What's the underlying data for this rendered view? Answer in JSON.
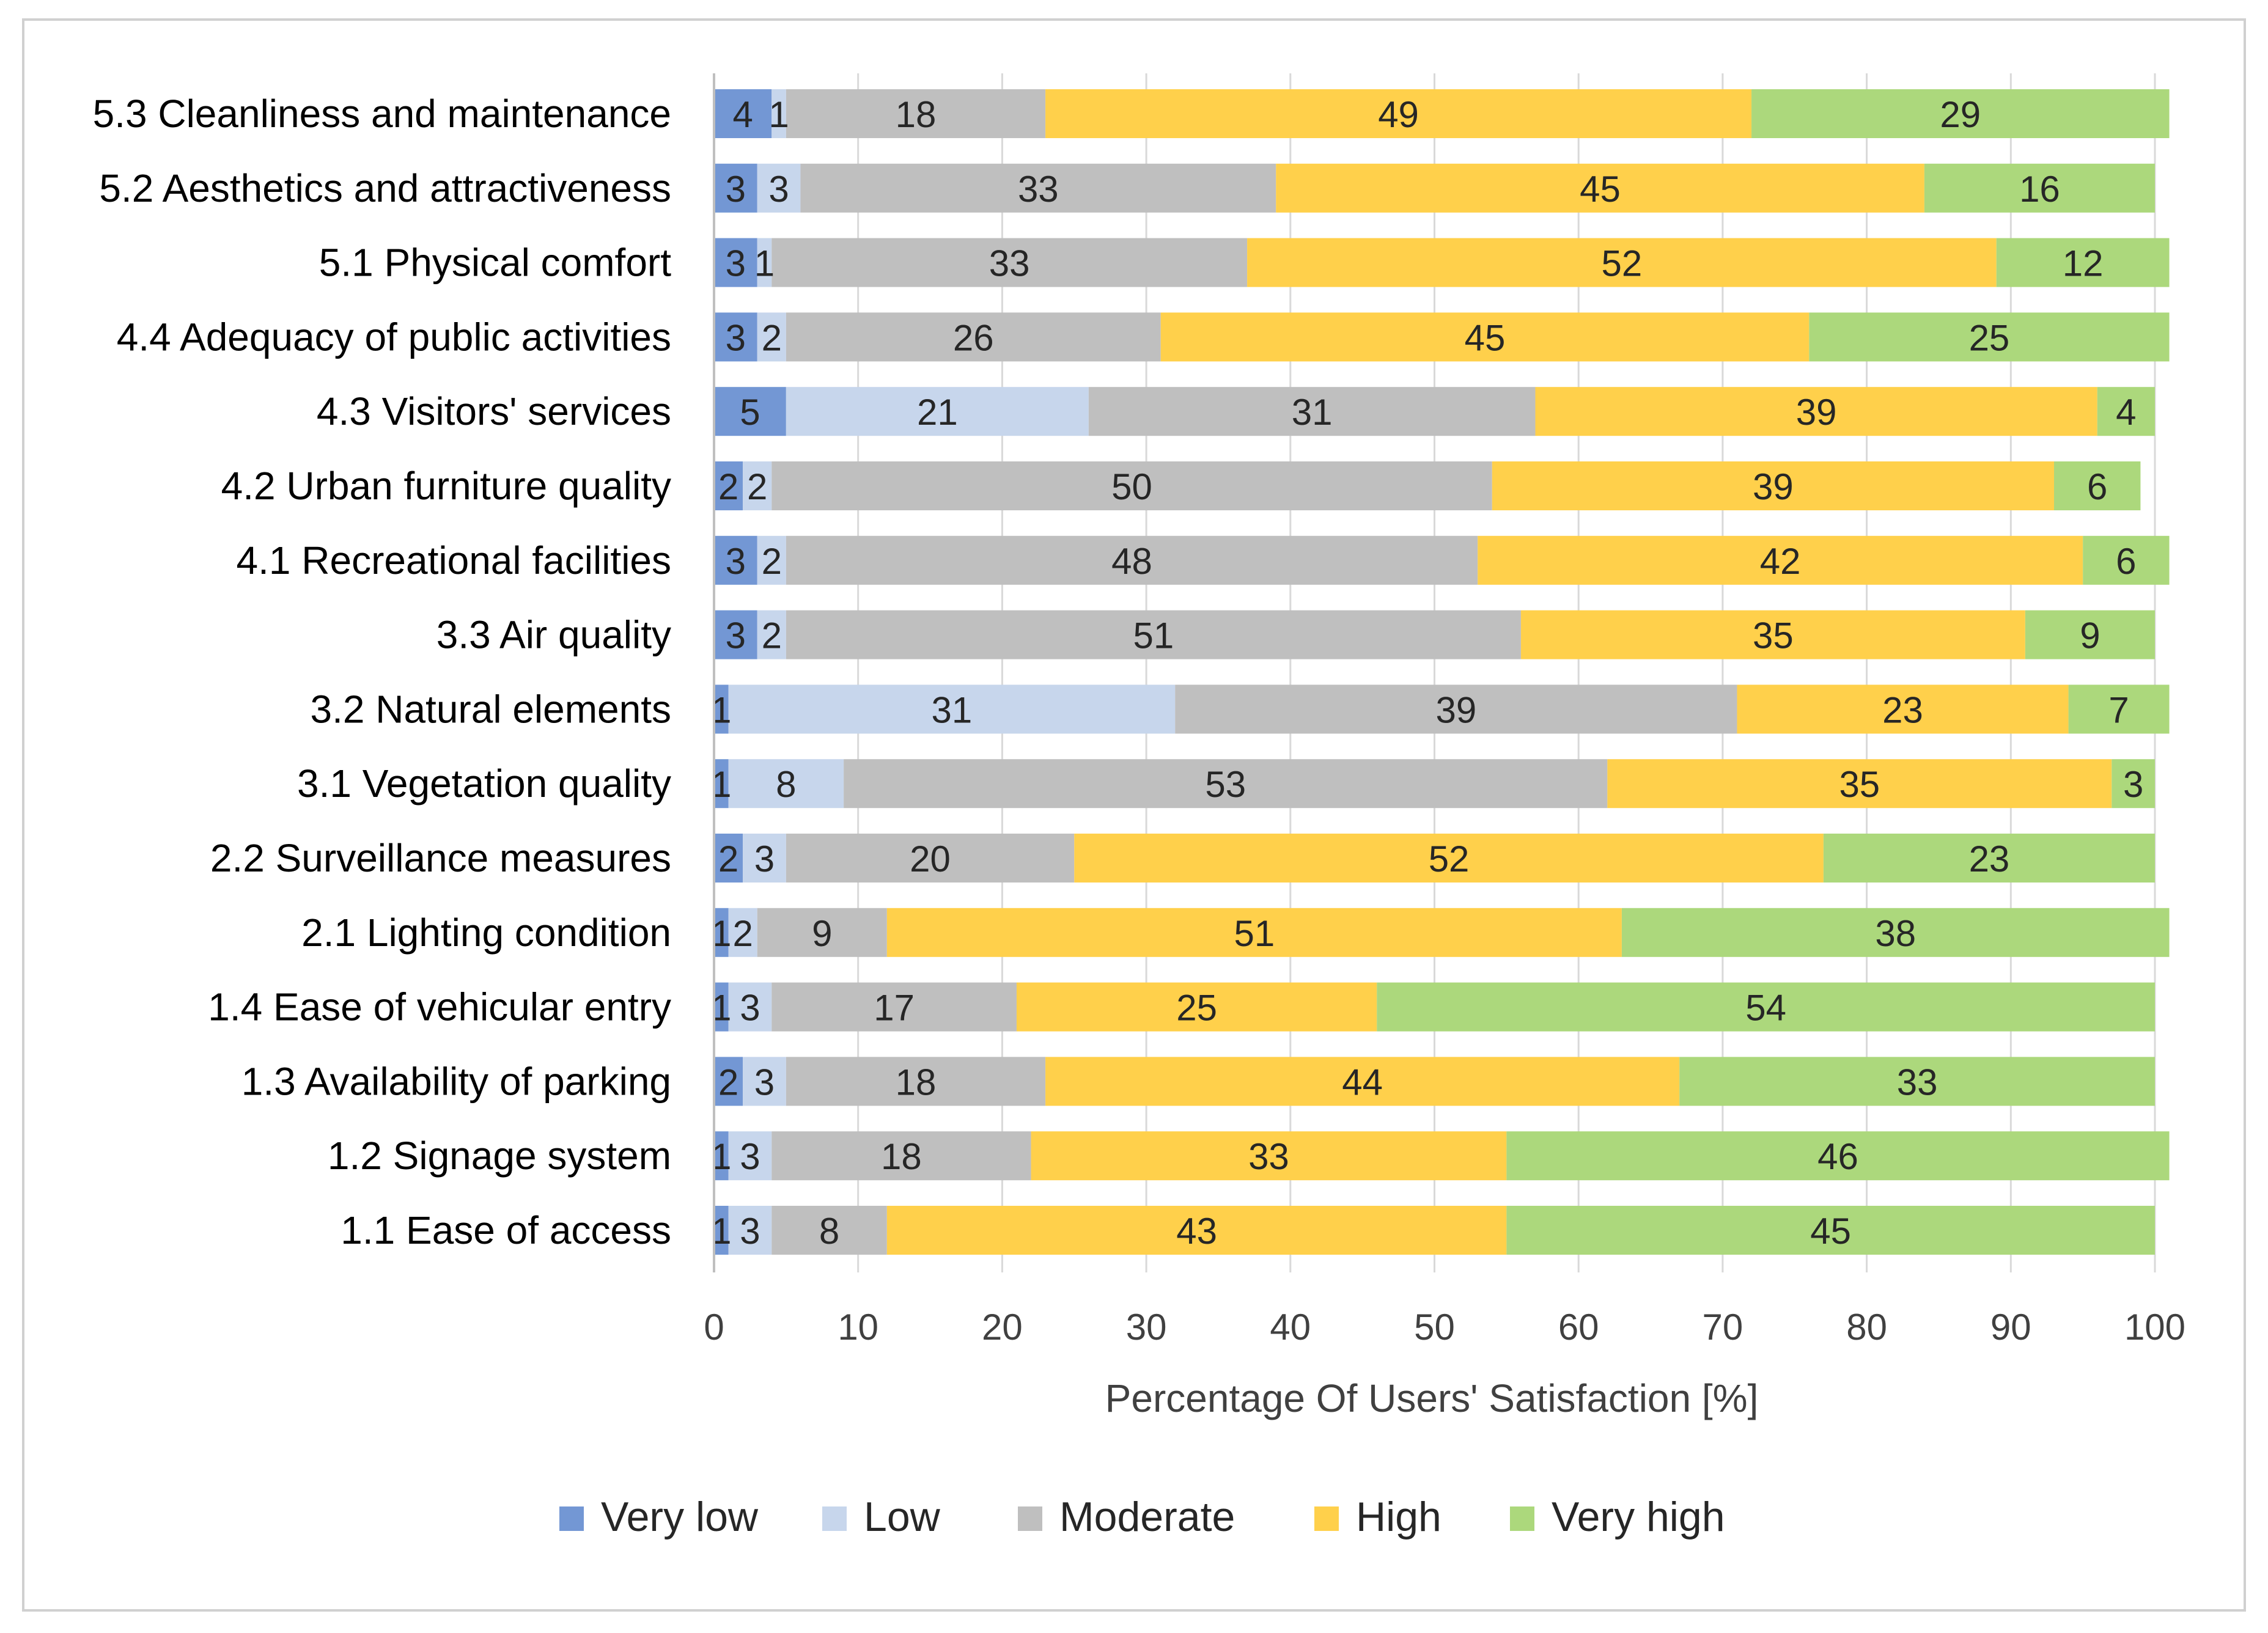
{
  "chart_data": {
    "type": "bar",
    "orientation": "horizontal",
    "stacked": true,
    "title": "",
    "xlabel": "Percentage Of Users' Satisfaction [%]",
    "ylabel": "",
    "xlim": [
      0,
      100
    ],
    "xticks": [
      "0",
      "10",
      "20",
      "30",
      "40",
      "50",
      "60",
      "70",
      "80",
      "90",
      "100"
    ],
    "grid": true,
    "legend_position": "bottom",
    "categories": [
      "5.3 Cleanliness and maintenance",
      "5.2 Aesthetics and attractiveness",
      "5.1 Physical comfort",
      "4.4 Adequacy of public activities",
      "4.3 Visitors' services",
      "4.2 Urban furniture quality",
      "4.1 Recreational facilities",
      "3.3 Air quality",
      "3.2  Natural elements",
      "3.1 Vegetation quality",
      "2.2 Surveillance measures",
      "2.1 Lighting condition",
      "1.4 Ease of vehicular entry",
      "1.3 Availability of parking",
      "1.2 Signage system",
      "1.1 Ease of access"
    ],
    "series": [
      {
        "name": "Very low",
        "color": "#7397d4",
        "values": [
          4,
          3,
          3,
          3,
          5,
          2,
          3,
          3,
          1,
          1,
          2,
          1,
          1,
          2,
          1,
          1
        ]
      },
      {
        "name": "Low",
        "color": "#c7d6ec",
        "values": [
          1,
          3,
          1,
          2,
          21,
          2,
          2,
          2,
          31,
          8,
          3,
          2,
          3,
          3,
          3,
          3
        ]
      },
      {
        "name": "Moderate",
        "color": "#bfbfbf",
        "values": [
          18,
          33,
          33,
          26,
          31,
          50,
          48,
          51,
          39,
          53,
          20,
          9,
          17,
          18,
          18,
          8
        ]
      },
      {
        "name": "High",
        "color": "#ffd04b",
        "values": [
          49,
          45,
          52,
          45,
          39,
          39,
          42,
          35,
          23,
          35,
          52,
          51,
          25,
          44,
          33,
          43
        ]
      },
      {
        "name": "Very high",
        "color": "#acd87c",
        "values": [
          29,
          16,
          12,
          25,
          4,
          6,
          6,
          9,
          7,
          3,
          23,
          38,
          54,
          33,
          46,
          45
        ]
      }
    ]
  }
}
